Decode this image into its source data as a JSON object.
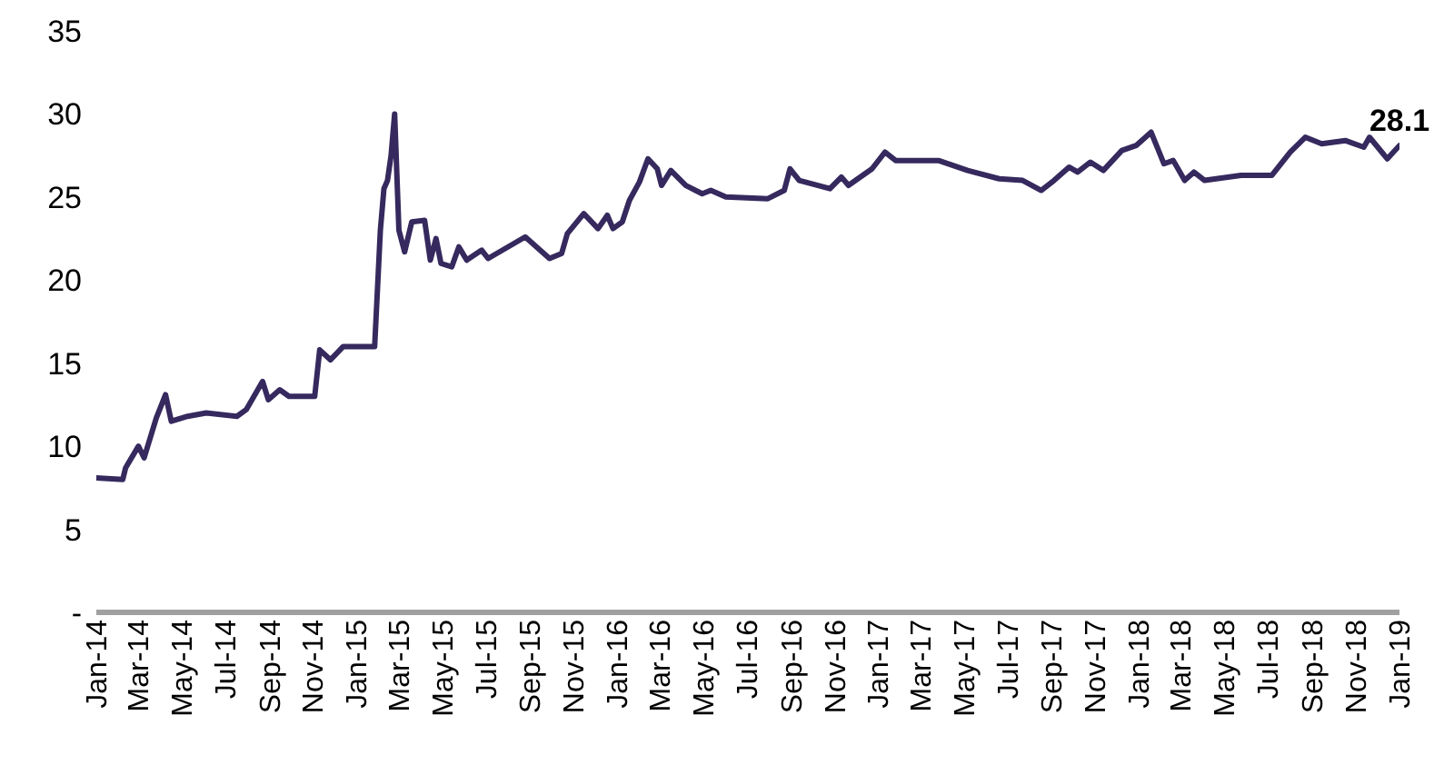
{
  "chart_data": {
    "type": "line",
    "x": [
      "2014-01-01",
      "2014-02-07",
      "2014-02-11",
      "2014-03-01",
      "2014-03-09",
      "2014-03-26",
      "2014-04-08",
      "2014-04-16",
      "2014-05-09",
      "2014-06-04",
      "2014-07-17",
      "2014-07-30",
      "2014-08-22",
      "2014-08-30",
      "2014-09-15",
      "2014-09-28",
      "2014-11-03",
      "2014-11-10",
      "2014-11-25",
      "2014-12-13",
      "2015-01-26",
      "2015-02-03",
      "2015-02-08",
      "2015-02-13",
      "2015-02-18",
      "2015-02-23",
      "2015-03-01",
      "2015-03-09",
      "2015-03-19",
      "2015-04-06",
      "2015-04-14",
      "2015-04-22",
      "2015-04-29",
      "2015-05-14",
      "2015-05-24",
      "2015-06-04",
      "2015-06-25",
      "2015-07-04",
      "2015-08-25",
      "2015-09-28",
      "2015-10-15",
      "2015-10-23",
      "2015-11-15",
      "2015-12-05",
      "2015-12-18",
      "2015-12-26",
      "2016-01-08",
      "2016-01-18",
      "2016-02-01",
      "2016-02-13",
      "2016-02-26",
      "2016-03-03",
      "2016-03-16",
      "2016-04-06",
      "2016-04-29",
      "2016-05-11",
      "2016-06-01",
      "2016-07-30",
      "2016-08-22",
      "2016-08-30",
      "2016-09-12",
      "2016-10-25",
      "2016-11-10",
      "2016-11-20",
      "2016-12-23",
      "2017-01-10",
      "2017-01-25",
      "2017-03-26",
      "2017-05-06",
      "2017-06-19",
      "2017-07-22",
      "2017-08-17",
      "2017-09-04",
      "2017-09-25",
      "2017-10-07",
      "2017-10-25",
      "2017-11-12",
      "2017-12-08",
      "2017-12-28",
      "2018-01-18",
      "2018-02-05",
      "2018-02-18",
      "2018-03-06",
      "2018-03-19",
      "2018-04-03",
      "2018-05-24",
      "2018-07-06",
      "2018-08-01",
      "2018-08-22",
      "2018-09-14",
      "2018-10-17",
      "2018-11-12",
      "2018-11-20",
      "2018-12-15",
      "2019-01-01"
    ],
    "series": [
      {
        "color": "#35295e",
        "values": [
          8.1,
          8,
          8.7,
          10,
          9.3,
          11.7,
          13.1,
          11.5,
          11.8,
          12,
          11.8,
          12.2,
          13.9,
          12.8,
          13.4,
          13,
          13,
          15.8,
          15.2,
          16,
          16,
          23,
          25.5,
          26,
          27.5,
          30,
          23,
          21.7,
          23.5,
          23.6,
          21.2,
          22.5,
          21,
          20.8,
          22,
          21.2,
          21.8,
          21.3,
          22.6,
          21.3,
          21.6,
          22.8,
          24,
          23.1,
          23.9,
          23.1,
          23.5,
          24.8,
          25.9,
          27.3,
          26.7,
          25.7,
          26.6,
          25.7,
          25.2,
          25.4,
          25,
          24.9,
          25.4,
          26.7,
          26,
          25.5,
          26.2,
          25.7,
          26.7,
          27.7,
          27.2,
          27.2,
          26.6,
          26.1,
          26,
          25.4,
          26,
          26.8,
          26.5,
          27.1,
          26.6,
          27.8,
          28.1,
          28.9,
          27,
          27.2,
          26,
          26.5,
          26,
          26.3,
          26.3,
          27.7,
          28.6,
          28.2,
          28.4,
          28,
          28.6,
          27.3,
          28.1
        ],
        "value_labels": [
          null,
          null,
          null,
          null,
          null,
          null,
          null,
          null,
          null,
          null,
          null,
          null,
          null,
          null,
          null,
          null,
          null,
          null,
          null,
          null,
          null,
          null,
          null,
          null,
          null,
          null,
          null,
          null,
          null,
          null,
          null,
          null,
          null,
          null,
          null,
          null,
          null,
          null,
          null,
          null,
          null,
          null,
          null,
          null,
          null,
          null,
          null,
          null,
          null,
          null,
          null,
          null,
          null,
          null,
          null,
          null,
          null,
          null,
          null,
          null,
          null,
          null,
          null,
          null,
          null,
          null,
          null,
          null,
          null,
          null,
          null,
          null,
          null,
          null,
          null,
          null,
          null,
          null,
          null,
          null,
          null,
          null,
          null,
          null,
          null,
          null,
          null,
          null,
          null,
          null,
          null,
          null,
          null,
          null,
          "28.1"
        ]
      }
    ],
    "xlim": [
      "2014-01-01",
      "2019-01-01"
    ],
    "xticks": [
      {
        "value": "2014-01",
        "label": "Jan-14"
      },
      {
        "value": "2014-03",
        "label": "Mar-14"
      },
      {
        "value": "2014-05",
        "label": "May-14"
      },
      {
        "value": "2014-07",
        "label": "Jul-14"
      },
      {
        "value": "2014-09",
        "label": "Sep-14"
      },
      {
        "value": "2014-11",
        "label": "Nov-14"
      },
      {
        "value": "2015-01",
        "label": "Jan-15"
      },
      {
        "value": "2015-03",
        "label": "Mar-15"
      },
      {
        "value": "2015-05",
        "label": "May-15"
      },
      {
        "value": "2015-07",
        "label": "Jul-15"
      },
      {
        "value": "2015-09",
        "label": "Sep-15"
      },
      {
        "value": "2015-11",
        "label": "Nov-15"
      },
      {
        "value": "2016-01",
        "label": "Jan-16"
      },
      {
        "value": "2016-03",
        "label": "Mar-16"
      },
      {
        "value": "2016-05",
        "label": "May-16"
      },
      {
        "value": "2016-07",
        "label": "Jul-16"
      },
      {
        "value": "2016-09",
        "label": "Sep-16"
      },
      {
        "value": "2016-11",
        "label": "Nov-16"
      },
      {
        "value": "2017-01",
        "label": "Jan-17"
      },
      {
        "value": "2017-03",
        "label": "Mar-17"
      },
      {
        "value": "2017-05",
        "label": "May-17"
      },
      {
        "value": "2017-07",
        "label": "Jul-17"
      },
      {
        "value": "2017-09",
        "label": "Sep-17"
      },
      {
        "value": "2017-11",
        "label": "Nov-17"
      },
      {
        "value": "2018-01",
        "label": "Jan-18"
      },
      {
        "value": "2018-03",
        "label": "Mar-18"
      },
      {
        "value": "2018-05",
        "label": "May-18"
      },
      {
        "value": "2018-07",
        "label": "Jul-18"
      },
      {
        "value": "2018-09",
        "label": "Sep-18"
      },
      {
        "value": "2018-11",
        "label": "Nov-18"
      },
      {
        "value": "2019-01",
        "label": "Jan-19"
      }
    ],
    "ylim": [
      0,
      35
    ],
    "yticks": [
      {
        "value": 0,
        "label": "-"
      },
      5,
      10,
      15,
      20,
      25,
      30,
      35
    ],
    "grid": false,
    "legend": false,
    "marker": "none",
    "line_style": "solid"
  }
}
